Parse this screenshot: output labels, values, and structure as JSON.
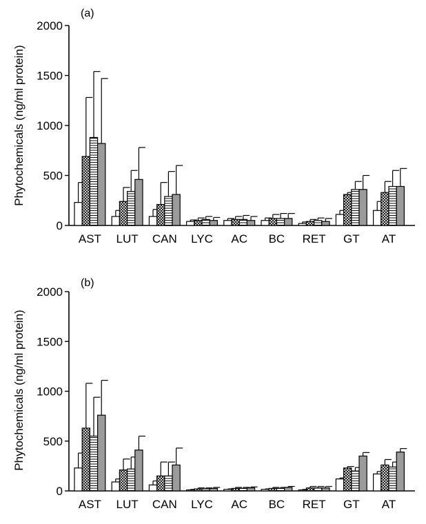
{
  "chart_data": [
    {
      "type": "bar",
      "panel_label": "(a)",
      "ylabel": "Phytochemicals (ng/ml protein)",
      "ylim": [
        0,
        2000
      ],
      "yticks": [
        0,
        500,
        1000,
        1500,
        2000
      ],
      "categories": [
        "AST",
        "LUT",
        "CAN",
        "LYC",
        "AC",
        "BC",
        "RET",
        "GT",
        "AT"
      ],
      "series": [
        {
          "pattern": "white",
          "values": [
            230,
            90,
            90,
            40,
            50,
            50,
            20,
            110,
            150
          ],
          "errors": [
            200,
            60,
            70,
            15,
            20,
            25,
            15,
            40,
            90
          ]
        },
        {
          "pattern": "crosshatch",
          "values": [
            690,
            240,
            210,
            50,
            60,
            70,
            40,
            310,
            330
          ],
          "errors": [
            590,
            140,
            220,
            25,
            30,
            40,
            20,
            20,
            110
          ]
        },
        {
          "pattern": "horizontal-lines",
          "values": [
            880,
            340,
            290,
            60,
            60,
            70,
            50,
            360,
            390
          ],
          "errors": [
            660,
            210,
            250,
            30,
            40,
            50,
            25,
            80,
            160
          ]
        },
        {
          "pattern": "gray",
          "values": [
            820,
            460,
            310,
            50,
            50,
            70,
            40,
            360,
            390
          ],
          "errors": [
            650,
            320,
            290,
            30,
            40,
            50,
            30,
            140,
            180
          ]
        }
      ]
    },
    {
      "type": "bar",
      "panel_label": "(b)",
      "ylabel": "Phytochemicals (ng/ml protein)",
      "ylim": [
        0,
        2000
      ],
      "yticks": [
        0,
        500,
        1000,
        1500,
        2000
      ],
      "categories": [
        "AST",
        "LUT",
        "CAN",
        "LYC",
        "AC",
        "BC",
        "RET",
        "GT",
        "AT"
      ],
      "series": [
        {
          "pattern": "white",
          "values": [
            230,
            90,
            60,
            10,
            15,
            15,
            10,
            120,
            170
          ],
          "errors": [
            150,
            30,
            40,
            5,
            5,
            5,
            5,
            10,
            25
          ]
        },
        {
          "pattern": "crosshatch",
          "values": [
            630,
            210,
            150,
            20,
            25,
            25,
            30,
            230,
            260
          ],
          "errors": [
            450,
            110,
            140,
            10,
            10,
            10,
            15,
            15,
            55
          ]
        },
        {
          "pattern": "horizontal-lines",
          "values": [
            550,
            220,
            150,
            20,
            25,
            25,
            30,
            200,
            240
          ],
          "errors": [
            390,
            120,
            140,
            10,
            10,
            10,
            15,
            35,
            50
          ]
        },
        {
          "pattern": "gray",
          "values": [
            760,
            410,
            260,
            25,
            30,
            35,
            30,
            350,
            390
          ],
          "errors": [
            350,
            140,
            170,
            10,
            10,
            10,
            15,
            35,
            35
          ]
        }
      ]
    }
  ]
}
